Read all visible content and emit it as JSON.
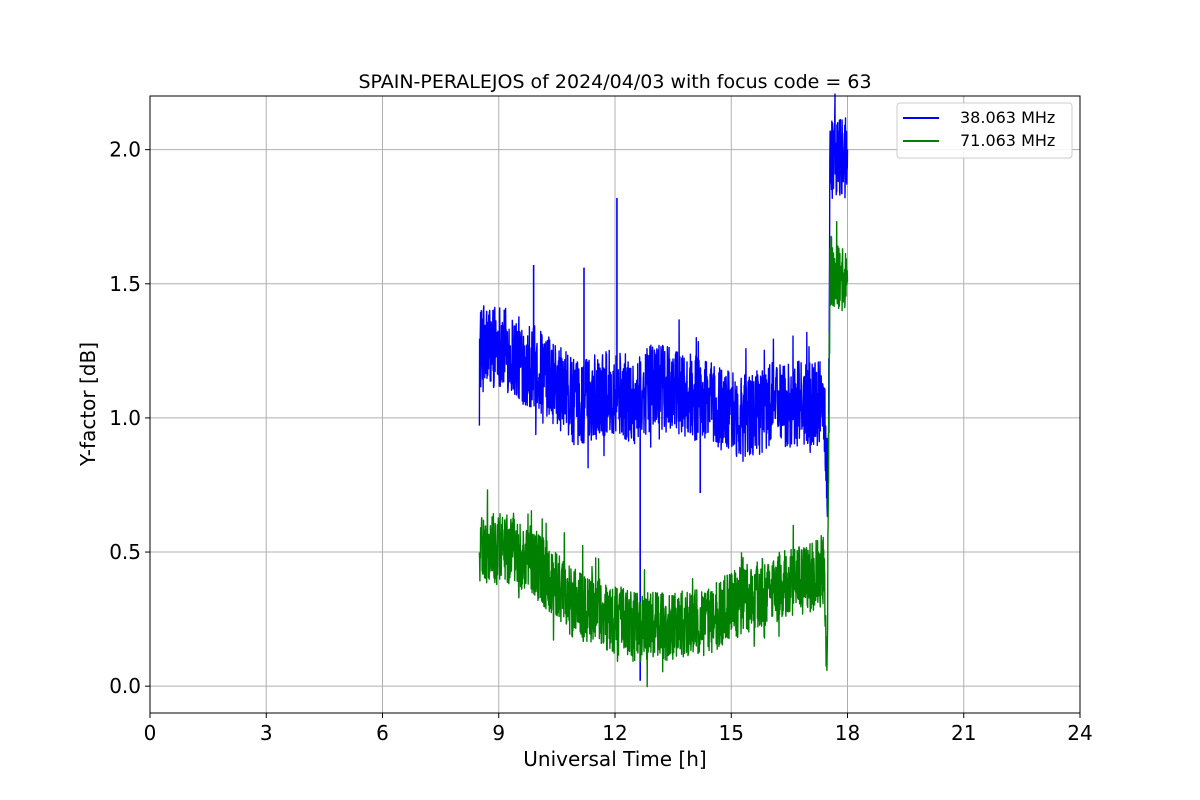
{
  "chart_data": {
    "type": "line",
    "title": "SPAIN-PERALEJOS of 2024/04/03 with focus code = 63",
    "xlabel": "Universal Time [h]",
    "ylabel": "Y-factor [dB]",
    "xlim": [
      0,
      24
    ],
    "ylim": [
      -0.1,
      2.2
    ],
    "xticks": [
      0,
      3,
      6,
      9,
      12,
      15,
      18,
      21,
      24
    ],
    "xtick_labels": [
      "0",
      "3",
      "6",
      "9",
      "12",
      "15",
      "18",
      "21",
      "24"
    ],
    "yticks": [
      0.0,
      0.5,
      1.0,
      1.5,
      2.0
    ],
    "ytick_labels": [
      "0.0",
      "0.5",
      "1.0",
      "1.5",
      "2.0"
    ],
    "grid": true,
    "legend_position": "top-right",
    "series": [
      {
        "name": "38.063 MHz",
        "color": "#0000ff",
        "noise": 0.16,
        "x": [
          8.5,
          9.0,
          9.5,
          10.0,
          10.5,
          11.0,
          11.5,
          12.0,
          12.5,
          13.0,
          13.5,
          14.0,
          14.5,
          15.0,
          15.5,
          16.0,
          16.5,
          17.0,
          17.4,
          17.5,
          17.55,
          18.0
        ],
        "y": [
          1.25,
          1.28,
          1.22,
          1.18,
          1.12,
          1.05,
          1.08,
          1.1,
          1.06,
          1.12,
          1.1,
          1.08,
          1.05,
          1.02,
          1.0,
          1.05,
          1.05,
          1.06,
          1.05,
          0.72,
          1.97,
          1.98
        ],
        "spikes": [
          {
            "x": 12.05,
            "y": 1.82
          },
          {
            "x": 12.65,
            "y": 0.02
          },
          {
            "x": 9.9,
            "y": 1.57
          },
          {
            "x": 11.2,
            "y": 1.56
          },
          {
            "x": 14.2,
            "y": 0.72
          }
        ]
      },
      {
        "name": "71.063 MHz",
        "color": "#008000",
        "noise": 0.13,
        "x": [
          8.5,
          9.0,
          9.5,
          10.0,
          10.5,
          11.0,
          11.5,
          12.0,
          12.5,
          13.0,
          13.5,
          14.0,
          14.5,
          15.0,
          15.5,
          16.0,
          16.5,
          17.0,
          17.4,
          17.47,
          17.55,
          18.0
        ],
        "y": [
          0.5,
          0.52,
          0.5,
          0.45,
          0.37,
          0.3,
          0.28,
          0.25,
          0.22,
          0.22,
          0.22,
          0.23,
          0.25,
          0.3,
          0.33,
          0.36,
          0.38,
          0.4,
          0.43,
          0.0,
          1.55,
          1.52
        ],
        "spikes": []
      }
    ]
  }
}
